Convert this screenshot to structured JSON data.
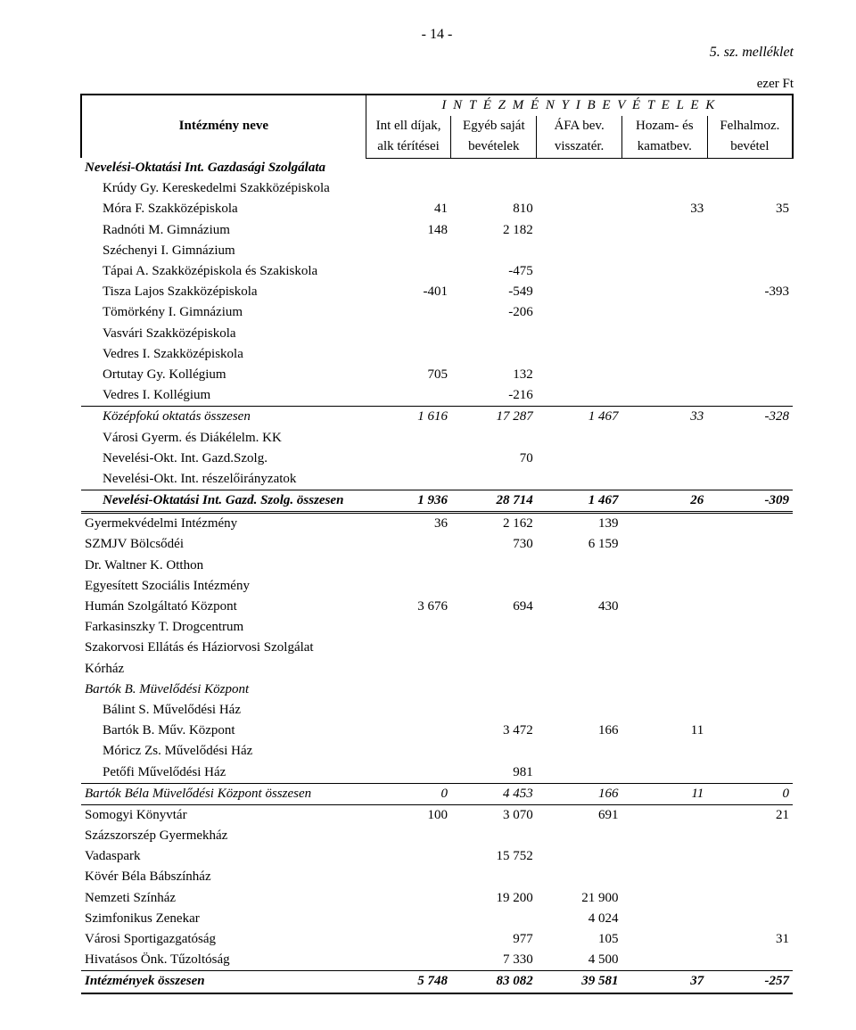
{
  "page_number_label": "- 14 -",
  "attachment_label": "5. sz. melléklet",
  "unit_label": "ezer Ft",
  "super_header": "I N T É Z M É N Y I    B E V É T E L E K",
  "header": {
    "name": "Intézmény neve",
    "c1a": "Int ell díjak,",
    "c1b": "alk térítései",
    "c2a": "Egyéb saját",
    "c2b": "bevételek",
    "c3a": "ÁFA bev.",
    "c3b": "visszatér.",
    "c4a": "Hozam- és",
    "c4b": "kamatbev.",
    "c5a": "Felhalmoz.",
    "c5b": "bevétel"
  },
  "rows": [
    {
      "name": "Nevelési-Oktatási Int. Gazdasági Szolgálata",
      "style": "bolditalic"
    },
    {
      "name": "Krúdy Gy. Kereskedelmi Szakközépiskola",
      "indent": 1
    },
    {
      "name": "Móra F. Szakközépiskola",
      "indent": 1,
      "v": [
        "41",
        "810",
        "",
        "33",
        "35"
      ]
    },
    {
      "name": "Radnóti M. Gimnázium",
      "indent": 1,
      "v": [
        "148",
        "2 182",
        "",
        "",
        ""
      ]
    },
    {
      "name": "Széchenyi I. Gimnázium",
      "indent": 1
    },
    {
      "name": "Tápai A. Szakközépiskola és Szakiskola",
      "indent": 1,
      "v": [
        "",
        "-475",
        "",
        "",
        ""
      ]
    },
    {
      "name": "Tisza Lajos Szakközépiskola",
      "indent": 1,
      "v": [
        "-401",
        "-549",
        "",
        "",
        "-393"
      ]
    },
    {
      "name": "Tömörkény I. Gimnázium",
      "indent": 1,
      "v": [
        "",
        "-206",
        "",
        "",
        ""
      ]
    },
    {
      "name": "Vasvári Szakközépiskola",
      "indent": 1
    },
    {
      "name": "Vedres I. Szakközépiskola",
      "indent": 1
    },
    {
      "name": "Ortutay Gy. Kollégium",
      "indent": 1,
      "v": [
        "705",
        "132",
        "",
        "",
        ""
      ]
    },
    {
      "name": "Vedres I. Kollégium",
      "indent": 1,
      "v": [
        "",
        "-216",
        "",
        "",
        ""
      ]
    },
    {
      "name": "Középfokú oktatás összesen",
      "indent": 1,
      "style": "italic",
      "sep": "thin",
      "v": [
        "1 616",
        "17 287",
        "1 467",
        "33",
        "-328"
      ]
    },
    {
      "name": "Városi Gyerm. és Diákélelm. KK",
      "indent": 1
    },
    {
      "name": "Nevelési-Okt. Int. Gazd.Szolg.",
      "indent": 1,
      "v": [
        "",
        "70",
        "",
        "",
        ""
      ]
    },
    {
      "name": "Nevelési-Okt. Int. részelőirányzatok",
      "indent": 1
    },
    {
      "name": "Nevelési-Oktatási Int. Gazd. Szolg. összesen",
      "indent": 1,
      "style": "bolditalic",
      "sep": "thin",
      "sepBottom": "thin",
      "v": [
        "1 936",
        "28 714",
        "1 467",
        "26",
        "-309"
      ]
    },
    {
      "name": "Gyermekvédelmi Intézmény",
      "sep": "double",
      "v": [
        "36",
        "2 162",
        "139",
        "",
        ""
      ]
    },
    {
      "name": "SZMJV Bölcsődéi",
      "v": [
        "",
        "730",
        "6 159",
        "",
        ""
      ]
    },
    {
      "name": "Dr. Waltner K. Otthon"
    },
    {
      "name": "Egyesített Szociális Intézmény"
    },
    {
      "name": "Humán Szolgáltató Központ",
      "v": [
        "3 676",
        "694",
        "430",
        "",
        ""
      ]
    },
    {
      "name": "Farkasinszky T. Drogcentrum"
    },
    {
      "name": "Szakorvosi Ellátás és Háziorvosi Szolgálat"
    },
    {
      "name": "Kórház"
    },
    {
      "name": "Bartók B. Müvelődési  Központ",
      "style": "italic"
    },
    {
      "name": "Bálint S. Művelődési Ház",
      "indent": 1
    },
    {
      "name": "Bartók B. Műv. Központ",
      "indent": 1,
      "v": [
        "",
        "3 472",
        "166",
        "11",
        ""
      ]
    },
    {
      "name": "Móricz Zs. Művelődési Ház",
      "indent": 1
    },
    {
      "name": "Petőfi Művelődési Ház",
      "indent": 1,
      "v": [
        "",
        "981",
        "",
        "",
        ""
      ]
    },
    {
      "name": "Bartók Béla Müvelődési Központ összesen",
      "style": "italic",
      "sep": "thin",
      "v": [
        "0",
        "4 453",
        "166",
        "11",
        "0"
      ]
    },
    {
      "name": "Somogyi Könyvtár",
      "sep": "thin",
      "v": [
        "100",
        "3 070",
        "691",
        "",
        "21"
      ]
    },
    {
      "name": "Százszorszép Gyermekház"
    },
    {
      "name": "Vadaspark",
      "v": [
        "",
        "15 752",
        "",
        "",
        ""
      ]
    },
    {
      "name": "Kövér Béla Bábszínház"
    },
    {
      "name": "Nemzeti Színház",
      "v": [
        "",
        "19 200",
        "21 900",
        "",
        ""
      ]
    },
    {
      "name": "Szimfonikus Zenekar",
      "v": [
        "",
        "",
        "4 024",
        "",
        ""
      ]
    },
    {
      "name": "Városi Sportigazgatóság",
      "v": [
        "",
        "977",
        "105",
        "",
        "31"
      ]
    },
    {
      "name": "Hivatásos Önk. Tűzoltóság",
      "v": [
        "",
        "7 330",
        "4 500",
        "",
        ""
      ]
    },
    {
      "name": "Intézmények összesen",
      "style": "bolditalic",
      "final": true,
      "v": [
        "5 748",
        "83 082",
        "39 581",
        "37",
        "-257"
      ]
    }
  ]
}
